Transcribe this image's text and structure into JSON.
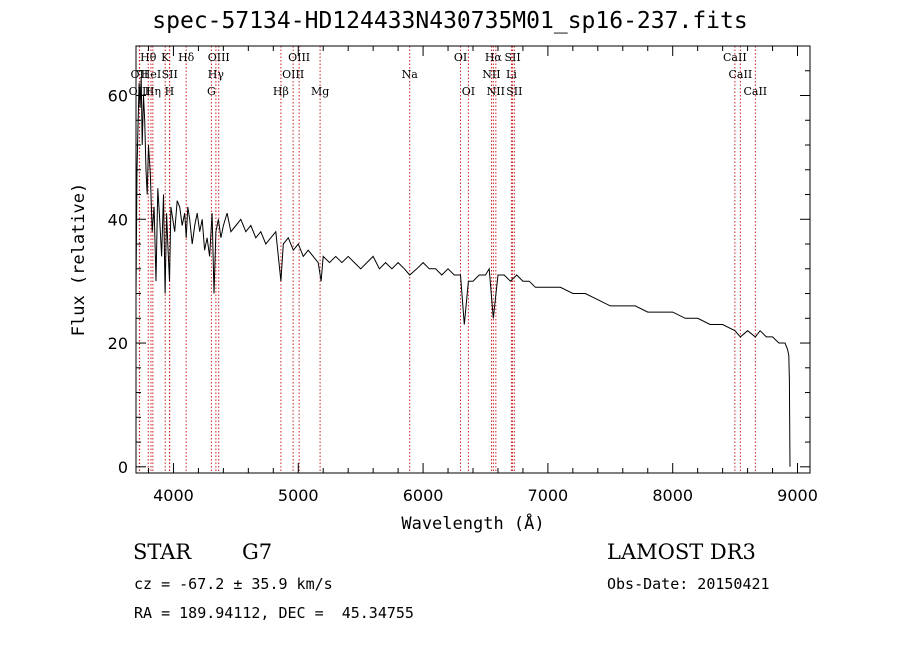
{
  "chart_data": {
    "type": "line",
    "title": "spec-57134-HD124433N430735M01_sp16-237.fits",
    "xlabel": "Wavelength (Å)",
    "ylabel": "Flux (relative)",
    "xlim": [
      3700,
      9100
    ],
    "ylim": [
      -1,
      68
    ],
    "xticks": [
      4000,
      5000,
      6000,
      7000,
      8000,
      9000
    ],
    "yticks": [
      0,
      20,
      40,
      60
    ],
    "series": [
      {
        "name": "spectrum",
        "x": [
          3700,
          3708,
          3716,
          3725,
          3733,
          3742,
          3750,
          3760,
          3770,
          3780,
          3790,
          3800,
          3815,
          3830,
          3845,
          3860,
          3875,
          3890,
          3905,
          3920,
          3933,
          3945,
          3955,
          3968,
          3980,
          3995,
          4010,
          4030,
          4050,
          4070,
          4090,
          4102,
          4115,
          4130,
          4150,
          4170,
          4190,
          4210,
          4230,
          4250,
          4270,
          4290,
          4310,
          4325,
          4340,
          4360,
          4380,
          4400,
          4430,
          4460,
          4500,
          4540,
          4580,
          4620,
          4660,
          4700,
          4740,
          4780,
          4820,
          4861,
          4880,
          4920,
          4960,
          5000,
          5040,
          5080,
          5120,
          5160,
          5183,
          5200,
          5250,
          5300,
          5350,
          5400,
          5450,
          5500,
          5550,
          5600,
          5650,
          5700,
          5750,
          5800,
          5850,
          5893,
          5950,
          6000,
          6050,
          6100,
          6150,
          6200,
          6250,
          6300,
          6330,
          6363,
          6400,
          6450,
          6500,
          6530,
          6563,
          6600,
          6650,
          6700,
          6750,
          6800,
          6850,
          6900,
          6950,
          7000,
          7100,
          7200,
          7300,
          7400,
          7500,
          7600,
          7700,
          7800,
          7900,
          8000,
          8100,
          8200,
          8300,
          8400,
          8498,
          8542,
          8600,
          8662,
          8700,
          8750,
          8800,
          8850,
          8900,
          8920,
          8930,
          8935,
          8940
        ],
        "y": [
          28,
          48,
          55,
          62,
          58,
          63,
          52,
          60,
          56,
          48,
          44,
          52,
          47,
          38,
          42,
          30,
          45,
          40,
          34,
          44,
          28,
          41,
          36,
          30,
          42,
          40,
          38,
          43,
          42,
          39,
          41,
          37,
          42,
          40,
          36,
          39,
          41,
          38,
          40,
          35,
          37,
          34,
          41,
          28,
          38,
          40,
          37,
          39,
          41,
          38,
          39,
          40,
          38,
          39,
          37,
          38,
          36,
          37,
          38,
          30,
          36,
          37,
          35,
          36,
          34,
          35,
          34,
          33,
          30,
          34,
          33,
          34,
          33,
          34,
          33,
          32,
          33,
          34,
          32,
          33,
          32,
          33,
          32,
          31,
          32,
          33,
          32,
          32,
          31,
          32,
          31,
          31,
          23,
          30,
          30,
          31,
          31,
          32,
          24,
          31,
          31,
          30,
          31,
          30,
          30,
          29,
          29,
          29,
          29,
          28,
          28,
          27,
          26,
          26,
          26,
          25,
          25,
          25,
          24,
          24,
          23,
          23,
          22,
          21,
          22,
          21,
          22,
          21,
          21,
          20,
          20,
          19,
          18,
          14,
          0
        ]
      }
    ],
    "line_markers": [
      {
        "label": "OII",
        "wavelength": 3727,
        "row": 1
      },
      {
        "label": "OIII",
        "wavelength": 3729,
        "row": 2
      },
      {
        "label": "Hθ",
        "wavelength": 3798,
        "row": 0
      },
      {
        "label": "HeI",
        "wavelength": 3820,
        "row": 1
      },
      {
        "label": "Hη",
        "wavelength": 3835,
        "row": 2
      },
      {
        "label": "K",
        "wavelength": 3934,
        "row": 0
      },
      {
        "label": "SII",
        "wavelength": 3970,
        "row": 1
      },
      {
        "label": "H",
        "wavelength": 3968,
        "row": 2
      },
      {
        "label": "Hδ",
        "wavelength": 4102,
        "row": 0
      },
      {
        "label": "OIII",
        "wavelength": 4363,
        "row": 0
      },
      {
        "label": "Hγ",
        "wavelength": 4340,
        "row": 1
      },
      {
        "label": "G",
        "wavelength": 4304,
        "row": 2
      },
      {
        "label": "Hβ",
        "wavelength": 4861,
        "row": 2
      },
      {
        "label": "OIII",
        "wavelength": 5007,
        "row": 0
      },
      {
        "label": "OIII",
        "wavelength": 4959,
        "row": 1
      },
      {
        "label": "Mg",
        "wavelength": 5175,
        "row": 2
      },
      {
        "label": "Na",
        "wavelength": 5893,
        "row": 1
      },
      {
        "label": "OI",
        "wavelength": 6300,
        "row": 0
      },
      {
        "label": "OI",
        "wavelength": 6363,
        "row": 2
      },
      {
        "label": "Hα",
        "wavelength": 6563,
        "row": 0
      },
      {
        "label": "NII",
        "wavelength": 6548,
        "row": 1
      },
      {
        "label": "NII",
        "wavelength": 6583,
        "row": 2
      },
      {
        "label": "SII",
        "wavelength": 6717,
        "row": 0
      },
      {
        "label": "Li",
        "wavelength": 6708,
        "row": 1
      },
      {
        "label": "SII",
        "wavelength": 6731,
        "row": 2
      },
      {
        "label": "CaII",
        "wavelength": 8498,
        "row": 0
      },
      {
        "label": "CaII",
        "wavelength": 8542,
        "row": 1
      },
      {
        "label": "CaII",
        "wavelength": 8662,
        "row": 2
      }
    ]
  },
  "info": {
    "object_class": "STAR",
    "subclass": "G7",
    "survey": "LAMOST DR3",
    "cz_line": "cz = -67.2 ± 35.9 km/s",
    "obs_date_line": "Obs-Date: 20150421",
    "coords_line": "RA = 189.94112, DEC =  45.34755"
  },
  "colors": {
    "marker_line": "#cc2222",
    "spectrum": "#000000",
    "axis": "#000000"
  }
}
